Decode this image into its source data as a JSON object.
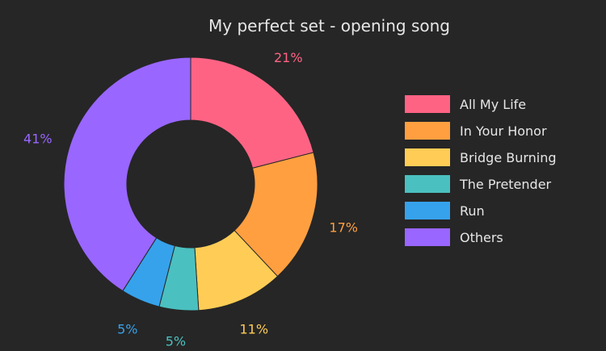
{
  "chart_data": {
    "type": "pie",
    "title": "My perfect set - opening song",
    "hole": true,
    "slices": [
      {
        "label": "All My Life",
        "value": 21,
        "display": "21%",
        "color": "#ff6384"
      },
      {
        "label": "In Your Honor",
        "value": 17,
        "display": "17%",
        "color": "#ff9f40"
      },
      {
        "label": "Bridge Burning",
        "value": 11,
        "display": "11%",
        "color": "#ffcd56"
      },
      {
        "label": "The Pretender",
        "value": 5,
        "display": "5%",
        "color": "#4bc0c0"
      },
      {
        "label": "Run",
        "value": 5,
        "display": "5%",
        "color": "#36a2eb"
      },
      {
        "label": "Others",
        "value": 41,
        "display": "41%",
        "color": "#9966ff"
      }
    ],
    "legend_position": "right",
    "background": "#262626"
  }
}
